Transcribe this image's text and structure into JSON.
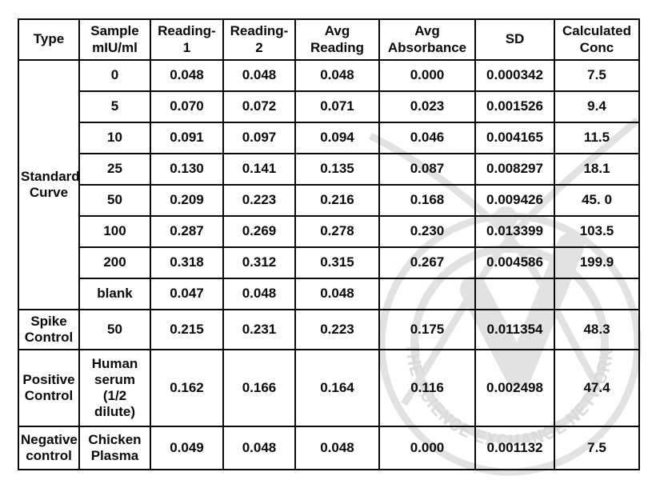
{
  "table": {
    "columns": [
      "Type",
      "Sample\nmIU/ml",
      "Reading-\n1",
      "Reading-\n2",
      "Avg\nReading",
      "Avg\nAbsorbance",
      "SD",
      "Calculated\nConc"
    ],
    "groups": [
      {
        "label": "Standard\nCurve",
        "rows": [
          [
            "0",
            "0.048",
            "0.048",
            "0.048",
            "0.000",
            "0.000342",
            "7.5"
          ],
          [
            "5",
            "0.070",
            "0.072",
            "0.071",
            "0.023",
            "0.001526",
            "9.4"
          ],
          [
            "10",
            "0.091",
            "0.097",
            "0.094",
            "0.046",
            "0.004165",
            "11.5"
          ],
          [
            "25",
            "0.130",
            "0.141",
            "0.135",
            "0.087",
            "0.008297",
            "18.1"
          ],
          [
            "50",
            "0.209",
            "0.223",
            "0.216",
            "0.168",
            "0.009426",
            "45. 0"
          ],
          [
            "100",
            "0.287",
            "0.269",
            "0.278",
            "0.230",
            "0.013399",
            "103.5"
          ],
          [
            "200",
            "0.318",
            "0.312",
            "0.315",
            "0.267",
            "0.004586",
            "199.9"
          ],
          [
            "blank",
            "0.047",
            "0.048",
            "0.048",
            "",
            "",
            ""
          ]
        ]
      },
      {
        "label": "Spike\nControl",
        "rows": [
          [
            "50",
            "0.215",
            "0.231",
            "0.223",
            "0.175",
            "0.011354",
            "48.3"
          ]
        ]
      },
      {
        "label": "Positive\nControl",
        "rows": [
          [
            "Human\nserum\n(1/2\ndilute)",
            "0.162",
            "0.166",
            "0.164",
            "0.116",
            "0.002498",
            "47.4"
          ]
        ]
      },
      {
        "label": "Negative\ncontrol",
        "rows": [
          [
            "Chicken\nPlasma",
            "0.049",
            "0.048",
            "0.048",
            "0.000",
            "0.001132",
            "7.5"
          ]
        ]
      }
    ]
  },
  "watermark": {
    "text": "THE SCIENCE EXCHANGE NETWORK",
    "color": "#e2e2e2",
    "text_color": "#dadada"
  }
}
